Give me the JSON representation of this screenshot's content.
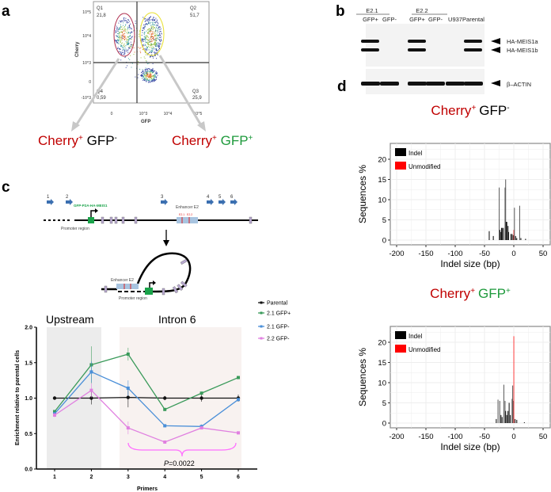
{
  "panels": {
    "a": "a",
    "b": "b",
    "c": "c",
    "d": "d"
  },
  "flow": {
    "y_axis_label": "Cherry",
    "x_axis_label": "GFP",
    "y_ticks": [
      "10^5",
      "10^4",
      "10^3",
      "0",
      "-10^3"
    ],
    "x_ticks": [
      "0",
      "10^3",
      "10^4",
      "10^5"
    ],
    "quadrants": [
      {
        "name": "Q1",
        "value": "21,8"
      },
      {
        "name": "Q2",
        "value": "51,7"
      },
      {
        "name": "Q3",
        "value": "25,9"
      },
      {
        "name": "Q4",
        "value": "0,59"
      }
    ],
    "population_left": {
      "cherry": "Cherry",
      "cherry_sup": "+",
      "gfp": "GFP",
      "gfp_sup": "-"
    },
    "population_right": {
      "cherry": "Cherry",
      "cherry_sup": "+",
      "gfp": "GFP",
      "gfp_sup": "+"
    }
  },
  "blot": {
    "groups": [
      "E2.1",
      "E2.2"
    ],
    "lanes": [
      "GFP+",
      "GFP-",
      "GFP+",
      "GFP-",
      "U937",
      "Parental"
    ],
    "band_labels": [
      "HA-MEIS1a",
      "HA-MEIS1b",
      "β–ACTIN"
    ],
    "meis_present": [
      1,
      0,
      1,
      0,
      0,
      1
    ]
  },
  "diagram": {
    "primers": [
      "1",
      "2",
      "3",
      "4",
      "5",
      "6"
    ],
    "construct_label": "GFP-P2A-HA-MEIS1",
    "promoter_label": "Promoter region",
    "enhancer_label": "Enhancer E2",
    "sites": [
      "E2.1",
      "E2.2"
    ],
    "loop_enhancer_label": "Enhancer E2",
    "loop_promoter_label": "Promoter region"
  },
  "chart_data": [
    {
      "type": "line",
      "xlabel": "Primers",
      "ylabel": "Enrichment relative to parental cells",
      "x": [
        1,
        2,
        3,
        4,
        5,
        6
      ],
      "ylim": [
        0,
        2.0
      ],
      "yticks": [
        "0.0",
        "0.5",
        "1.0",
        "1.5",
        "2.0"
      ],
      "regions": [
        "Upstream",
        "Intron 6"
      ],
      "annotation": {
        "p_prefix": "P",
        "p_value": "=0.0022"
      },
      "legend": "top-right",
      "series": [
        {
          "name": "Parental",
          "color": "#111111",
          "values": [
            1.0,
            1.0,
            1.01,
            1.0,
            1.0,
            1.0
          ],
          "err": [
            0.0,
            0.09,
            0.14,
            0.03,
            0.05,
            0.05
          ]
        },
        {
          "name": "2.1 GFP+",
          "color": "#3a9a5a",
          "values": [
            0.81,
            1.47,
            1.62,
            0.84,
            1.07,
            1.29
          ],
          "err": [
            0.02,
            0.26,
            0.09,
            0.01,
            0.01,
            0.02
          ]
        },
        {
          "name": "2.1 GFP-",
          "color": "#4a8fd8",
          "values": [
            0.78,
            1.37,
            1.14,
            0.61,
            0.6,
            0.98
          ],
          "err": [
            0.02,
            0.15,
            0.11,
            0.02,
            0.03,
            0.02
          ]
        },
        {
          "name": "2.2 GFP-",
          "color": "#e080e0",
          "values": [
            0.76,
            1.11,
            0.58,
            0.38,
            0.58,
            0.51
          ],
          "err": [
            0.03,
            0.1,
            0.09,
            0.01,
            0.02,
            0.02
          ]
        }
      ]
    },
    {
      "type": "bar",
      "title": {
        "cherry": "Cherry",
        "cherry_sup": "+",
        "gfp": "GFP",
        "gfp_sup": "-"
      },
      "xlabel": "Indel size (bp)",
      "ylabel": "Sequences %",
      "xlim": [
        -210,
        60
      ],
      "ylim": [
        -1.5,
        23.5
      ],
      "xticks": [
        "-200",
        "-150",
        "-100",
        "-50",
        "0",
        "50"
      ],
      "yticks": [
        "0",
        "5",
        "10",
        "15",
        "20"
      ],
      "legend": [
        "Indel",
        "Unmodified"
      ],
      "bars": [
        [
          -42,
          2.2,
          "indel"
        ],
        [
          -35,
          1,
          "indel"
        ],
        [
          -25,
          13,
          "indel"
        ],
        [
          -24,
          2.5,
          "indel"
        ],
        [
          -22,
          2,
          "indel"
        ],
        [
          -21,
          3,
          "indel"
        ],
        [
          -20,
          3,
          "indel"
        ],
        [
          -18,
          3,
          "indel"
        ],
        [
          -15,
          13,
          "indel"
        ],
        [
          -14,
          15,
          "indel"
        ],
        [
          -13,
          4.5,
          "indel"
        ],
        [
          -12,
          4.5,
          "indel"
        ],
        [
          -10,
          3.5,
          "indel"
        ],
        [
          -9,
          2,
          "indel"
        ],
        [
          -5,
          1.5,
          "indel"
        ],
        [
          -3,
          1.5,
          "indel"
        ],
        [
          -1,
          1.2,
          "indel"
        ],
        [
          0,
          2.5,
          "unmodified"
        ],
        [
          1,
          8,
          "indel"
        ],
        [
          3,
          1,
          "indel"
        ],
        [
          5,
          0.5,
          "indel"
        ],
        [
          10,
          8.5,
          "indel"
        ],
        [
          12,
          0.5,
          "indel"
        ],
        [
          20,
          0.3,
          "indel"
        ]
      ]
    },
    {
      "type": "bar",
      "title": {
        "cherry": "Cherry",
        "cherry_sup": "+",
        "gfp": "GFP",
        "gfp_sup": "+"
      },
      "xlabel": "Indel size (bp)",
      "ylabel": "Sequences %",
      "xlim": [
        -210,
        60
      ],
      "ylim": [
        -1.5,
        23.5
      ],
      "xticks": [
        "-200",
        "-150",
        "-100",
        "-50",
        "0",
        "50"
      ],
      "yticks": [
        "0",
        "5",
        "10",
        "15",
        "20"
      ],
      "legend": [
        "Indel",
        "Unmodified"
      ],
      "bars": [
        [
          -30,
          1,
          "indel"
        ],
        [
          -27,
          5.8,
          "indel"
        ],
        [
          -24,
          5.5,
          "indel"
        ],
        [
          -22,
          2,
          "indel"
        ],
        [
          -20,
          1.5,
          "indel"
        ],
        [
          -17,
          9.5,
          "indel"
        ],
        [
          -15,
          5.5,
          "indel"
        ],
        [
          -14,
          3,
          "indel"
        ],
        [
          -12,
          2,
          "indel"
        ],
        [
          -10,
          3,
          "indel"
        ],
        [
          -8,
          5,
          "indel"
        ],
        [
          -6,
          2,
          "indel"
        ],
        [
          -3,
          6,
          "indel"
        ],
        [
          -2,
          9.3,
          "indel"
        ],
        [
          -1,
          5.5,
          "indel"
        ],
        [
          0,
          21.5,
          "unmodified"
        ],
        [
          2,
          1,
          "indel"
        ],
        [
          5,
          0.8,
          "indel"
        ],
        [
          18,
          0.2,
          "indel"
        ]
      ]
    }
  ],
  "colors": {
    "cherry": "#c00000",
    "gfp": "#1e9a3c",
    "indel": "#000000",
    "unmodified": "#ff0000"
  }
}
